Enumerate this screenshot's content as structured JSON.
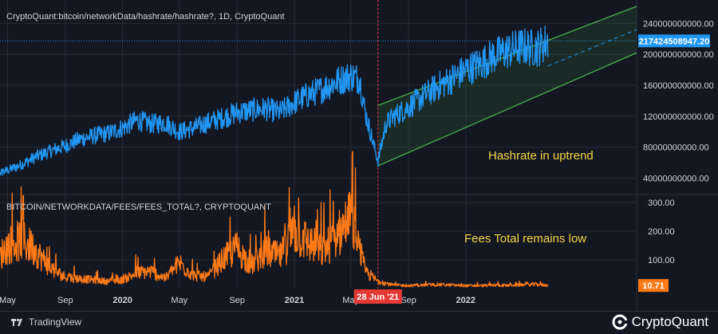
{
  "chart_data": [
    {
      "type": "line",
      "title": "CryptoQuant:bitcoin/networkData/hashrate/hashrate?, 1D, CryptoQuant",
      "y_ticks": [
        "240000000000.00",
        "200000000000.00",
        "160000000000.00",
        "120000000000.00",
        "80000000000.00",
        "40000000000.00"
      ],
      "y_tick_values": [
        240000000000,
        200000000000,
        160000000000,
        120000000000,
        80000000000,
        40000000000
      ],
      "ylim": [
        20000000000,
        262000000000
      ],
      "last_value_label": "217424508947.20",
      "last_value": 217424508947.2,
      "color": "#2196f3",
      "x": [
        "2019-04-01",
        "2019-05-01",
        "2019-06-01",
        "2019-07-01",
        "2019-08-01",
        "2019-09-01",
        "2019-10-01",
        "2019-11-01",
        "2019-12-01",
        "2020-01-01",
        "2020-02-01",
        "2020-03-01",
        "2020-04-01",
        "2020-05-01",
        "2020-06-01",
        "2020-07-01",
        "2020-08-01",
        "2020-09-01",
        "2020-10-01",
        "2020-11-01",
        "2020-12-01",
        "2021-01-01",
        "2021-02-01",
        "2021-03-01",
        "2021-04-01",
        "2021-05-01",
        "2021-05-20",
        "2021-06-01",
        "2021-06-28",
        "2021-07-15",
        "2021-08-01",
        "2021-09-01",
        "2021-10-01",
        "2021-11-01",
        "2021-12-01",
        "2022-01-01",
        "2022-02-01",
        "2022-03-01",
        "2022-04-01",
        "2022-05-01",
        "2022-06-01",
        "2022-06-25"
      ],
      "values": [
        45000000000,
        50000000000,
        58000000000,
        68000000000,
        75000000000,
        82000000000,
        90000000000,
        95000000000,
        98000000000,
        105000000000,
        115000000000,
        110000000000,
        112000000000,
        100000000000,
        105000000000,
        112000000000,
        118000000000,
        125000000000,
        128000000000,
        130000000000,
        125000000000,
        138000000000,
        148000000000,
        155000000000,
        165000000000,
        172000000000,
        168000000000,
        125000000000,
        62000000000,
        110000000000,
        120000000000,
        132000000000,
        145000000000,
        158000000000,
        168000000000,
        180000000000,
        188000000000,
        198000000000,
        205000000000,
        210000000000,
        208000000000,
        217000000000
      ],
      "annotations": [
        {
          "text": "Hashrate in uptrend",
          "color": "#f5d442"
        }
      ],
      "channel": {
        "label": "uptrend channel",
        "color": "#4caf50"
      }
    },
    {
      "type": "line",
      "title": "BITCOIN/NETWORKDATA/FEES/FEES_TOTAL?, CRYPTOQUANT",
      "y_ticks": [
        "300.00",
        "200.00",
        "100.00"
      ],
      "y_tick_values": [
        300,
        200,
        100
      ],
      "ylim": [
        0,
        320
      ],
      "last_value_label": "10.71",
      "last_value": 10.71,
      "color": "#ff7a17",
      "x": [
        "2019-04-01",
        "2019-05-01",
        "2019-06-01",
        "2019-07-01",
        "2019-08-01",
        "2019-09-01",
        "2019-10-01",
        "2019-11-01",
        "2019-12-01",
        "2020-01-01",
        "2020-02-01",
        "2020-03-01",
        "2020-04-01",
        "2020-05-01",
        "2020-06-01",
        "2020-07-01",
        "2020-08-01",
        "2020-09-01",
        "2020-10-01",
        "2020-11-01",
        "2020-12-01",
        "2021-01-01",
        "2021-02-01",
        "2021-03-01",
        "2021-04-01",
        "2021-05-01",
        "2021-06-01",
        "2021-06-28",
        "2021-08-01",
        "2021-09-01",
        "2021-10-01",
        "2021-11-01",
        "2021-12-01",
        "2022-01-01",
        "2022-02-01",
        "2022-03-01",
        "2022-04-01",
        "2022-05-01",
        "2022-06-01",
        "2022-06-25"
      ],
      "values": [
        80,
        150,
        170,
        130,
        70,
        40,
        35,
        30,
        25,
        30,
        55,
        60,
        35,
        90,
        45,
        40,
        100,
        140,
        80,
        130,
        110,
        200,
        160,
        130,
        180,
        250,
        60,
        25,
        12,
        10,
        12,
        14,
        12,
        10,
        10,
        12,
        11,
        13,
        15,
        10.7
      ],
      "annotations": [
        {
          "text": "Fees Total remains low",
          "color": "#f5d442"
        }
      ]
    }
  ],
  "x_axis": {
    "ticks": [
      {
        "label": "May",
        "date": "2019-05-01",
        "bold": false
      },
      {
        "label": "Sep",
        "date": "2019-09-01",
        "bold": false
      },
      {
        "label": "2020",
        "date": "2020-01-01",
        "bold": true
      },
      {
        "label": "May",
        "date": "2020-05-01",
        "bold": false
      },
      {
        "label": "Sep",
        "date": "2020-09-01",
        "bold": false
      },
      {
        "label": "2021",
        "date": "2021-01-01",
        "bold": true
      },
      {
        "label": "May",
        "date": "2021-05-01",
        "bold": false
      },
      {
        "label": "Sep",
        "date": "2021-09-01",
        "bold": false
      },
      {
        "label": "2022",
        "date": "2022-01-01",
        "bold": true
      }
    ],
    "range": [
      "2019-04-15",
      "2022-12-31"
    ],
    "crosshair_label": "28 Jun '21",
    "crosshair_date": "2021-06-28"
  },
  "colors": {
    "background": "#131722",
    "grid": "#262a36",
    "crosshair": "#e53935",
    "hashrate": "#2196f3",
    "fees": "#ff7a17",
    "channel": "#4caf50"
  },
  "footer": {
    "left_brand": "TradingView",
    "right_brand": "CryptoQuant"
  }
}
